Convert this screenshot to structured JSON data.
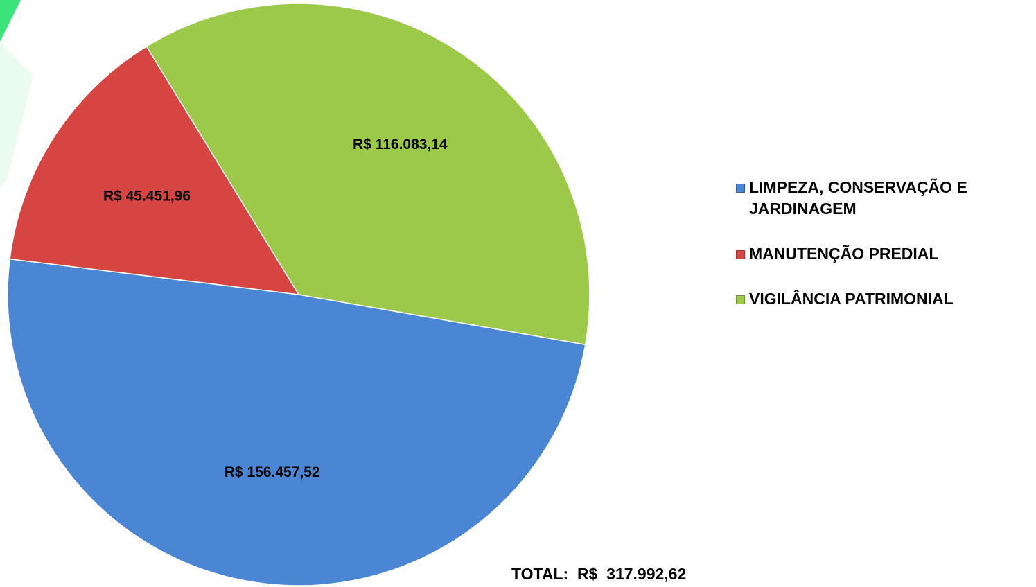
{
  "chart_data": {
    "type": "pie",
    "categories": [
      "LIMPEZA, CONSERVAÇÃO E JARDINAGEM",
      "MANUTENÇÃO PREDIAL",
      "VIGILÂNCIA PATRIMONIAL"
    ],
    "values": [
      156457.52,
      45451.96,
      116083.14
    ],
    "value_labels": [
      "R$ 156.457,52",
      "R$ 45.451,96",
      "R$ 116.083,14"
    ],
    "colors": [
      "#4a86d4",
      "#d64541",
      "#9dc94a"
    ],
    "annotation": "TOTAL:  R$  317.992,62",
    "legend": "right"
  }
}
